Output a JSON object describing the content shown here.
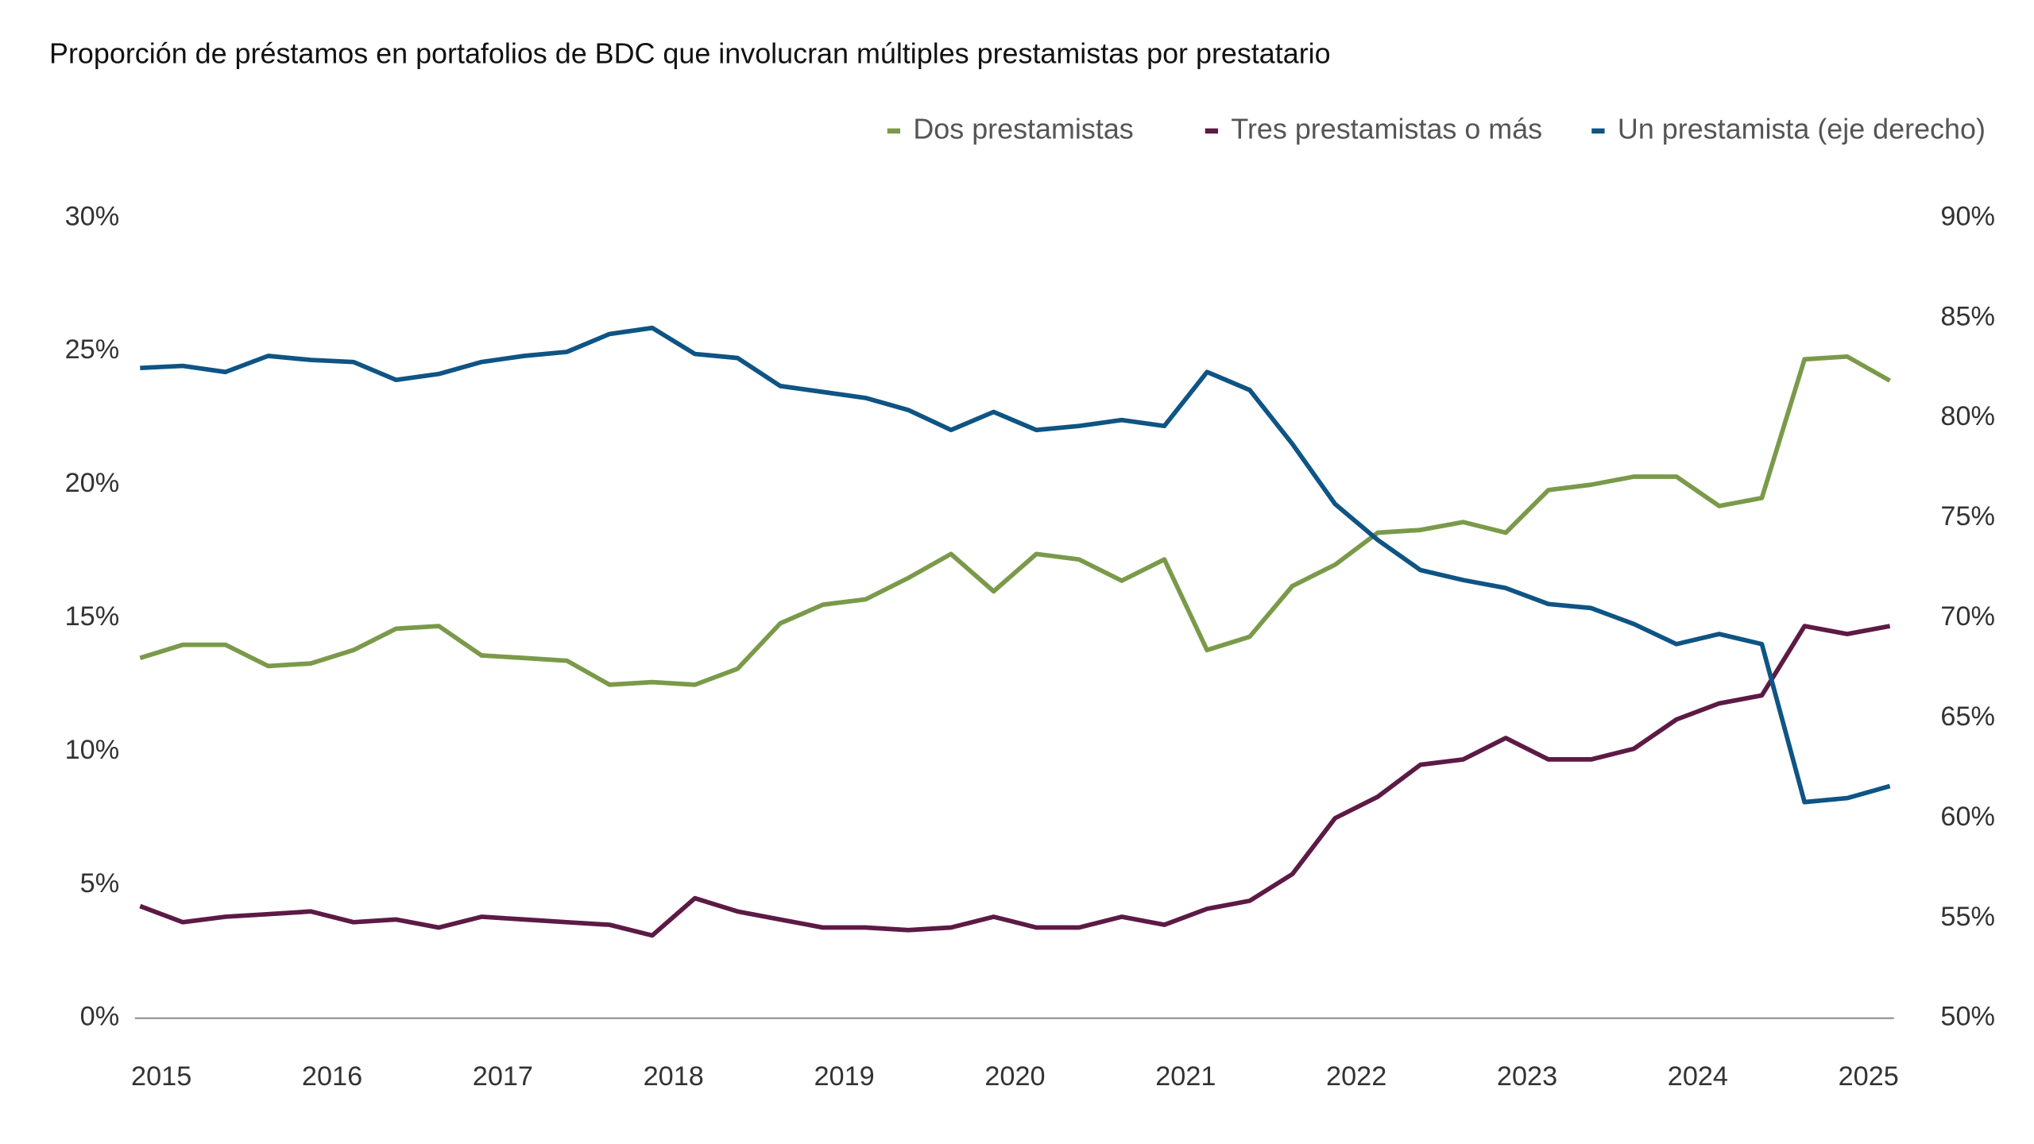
{
  "chart_data": {
    "type": "line",
    "title": "Proporción de préstamos en portafolios de BDC que involucran múltiples prestamistas por prestatario",
    "categories": [
      "2015",
      null,
      null,
      null,
      "2016",
      null,
      null,
      null,
      "2017",
      null,
      null,
      null,
      "2018",
      null,
      null,
      null,
      "2019",
      null,
      null,
      null,
      "2020",
      null,
      null,
      null,
      "2021",
      null,
      null,
      null,
      "2022",
      null,
      null,
      null,
      "2023",
      null,
      null,
      null,
      "2024",
      null,
      null,
      null,
      "2025",
      null
    ],
    "series": [
      {
        "name": "Dos prestamistas",
        "color": "#7a9a4a",
        "values": [
          13.5,
          14.0,
          14.0,
          13.2,
          13.3,
          13.8,
          14.6,
          14.7,
          13.6,
          13.5,
          13.4,
          12.5,
          12.6,
          12.5,
          13.1,
          14.8,
          15.5,
          15.7,
          16.5,
          17.4,
          16.0,
          17.4,
          17.2,
          16.4,
          17.2,
          13.8,
          14.3,
          16.2,
          17.0,
          18.2,
          18.3,
          18.6,
          18.2,
          19.8,
          20.0,
          20.3,
          20.3,
          19.2,
          19.5,
          24.7,
          24.8,
          23.9
        ]
      },
      {
        "name": "Tres prestamistas o más",
        "color": "#5c1a45",
        "values": [
          4.2,
          3.6,
          3.8,
          3.9,
          4.0,
          3.6,
          3.7,
          3.4,
          3.8,
          3.7,
          3.6,
          3.5,
          3.1,
          4.5,
          4.0,
          3.7,
          3.4,
          3.4,
          3.3,
          3.4,
          3.8,
          3.4,
          3.4,
          3.8,
          3.5,
          4.1,
          4.4,
          5.4,
          7.5,
          8.3,
          9.5,
          9.7,
          10.5,
          9.7,
          9.7,
          10.1,
          11.2,
          11.8,
          12.1,
          14.7,
          14.4,
          14.7
        ]
      },
      {
        "name": "Un prestamista (eje derecho)",
        "color": "#0e5484",
        "axis": "y2",
        "values": [
          82.5,
          82.6,
          82.3,
          83.1,
          82.9,
          82.8,
          81.9,
          82.2,
          82.8,
          83.1,
          83.3,
          84.2,
          84.5,
          83.2,
          83.0,
          81.6,
          81.3,
          81.0,
          80.4,
          79.4,
          80.3,
          79.4,
          79.6,
          79.9,
          79.6,
          82.3,
          81.4,
          78.7,
          75.7,
          73.9,
          72.4,
          71.9,
          71.5,
          70.7,
          70.5,
          69.7,
          68.7,
          69.2,
          68.7,
          60.8,
          61.0,
          61.6
        ]
      }
    ],
    "ylim": [
      0,
      30
    ],
    "yticks": [
      {
        "value": 0,
        "label": "0%"
      },
      {
        "value": 5,
        "label": "5%"
      },
      {
        "value": 10,
        "label": "10%"
      },
      {
        "value": 15,
        "label": "15%"
      },
      {
        "value": 20,
        "label": "20%"
      },
      {
        "value": 25,
        "label": "25%"
      },
      {
        "value": 30,
        "label": "30%"
      }
    ],
    "y2lim": [
      50,
      90
    ],
    "y2ticks": [
      {
        "value": 50,
        "label": "50%"
      },
      {
        "value": 55,
        "label": "55%"
      },
      {
        "value": 60,
        "label": "60%"
      },
      {
        "value": 65,
        "label": "65%"
      },
      {
        "value": 70,
        "label": "70%"
      },
      {
        "value": 75,
        "label": "75%"
      },
      {
        "value": 80,
        "label": "80%"
      },
      {
        "value": 85,
        "label": "85%"
      },
      {
        "value": 90,
        "label": "90%"
      }
    ],
    "grid": false,
    "legend": "top-right"
  }
}
